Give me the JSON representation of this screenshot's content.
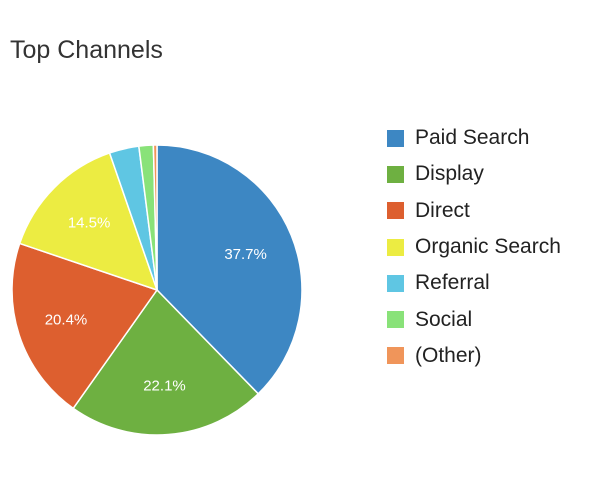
{
  "chart_data": {
    "type": "pie",
    "title": "Top Channels",
    "legend_position": "right",
    "slices": [
      {
        "label": "Paid Search",
        "value": 37.7,
        "value_label": "37.7%",
        "color": "#3d87c3"
      },
      {
        "label": "Display",
        "value": 22.1,
        "value_label": "22.1%",
        "color": "#6eb041"
      },
      {
        "label": "Direct",
        "value": 20.4,
        "value_label": "20.4%",
        "color": "#dd5f2f"
      },
      {
        "label": "Organic Search",
        "value": 14.5,
        "value_label": "14.5%",
        "color": "#ecec42"
      },
      {
        "label": "Referral",
        "value": 3.3,
        "value_label": "",
        "color": "#5fc6e3"
      },
      {
        "label": "Social",
        "value": 1.6,
        "value_label": "",
        "color": "#89e279"
      },
      {
        "label": "(Other)",
        "value": 0.4,
        "value_label": "",
        "color": "#f0955a"
      }
    ]
  }
}
